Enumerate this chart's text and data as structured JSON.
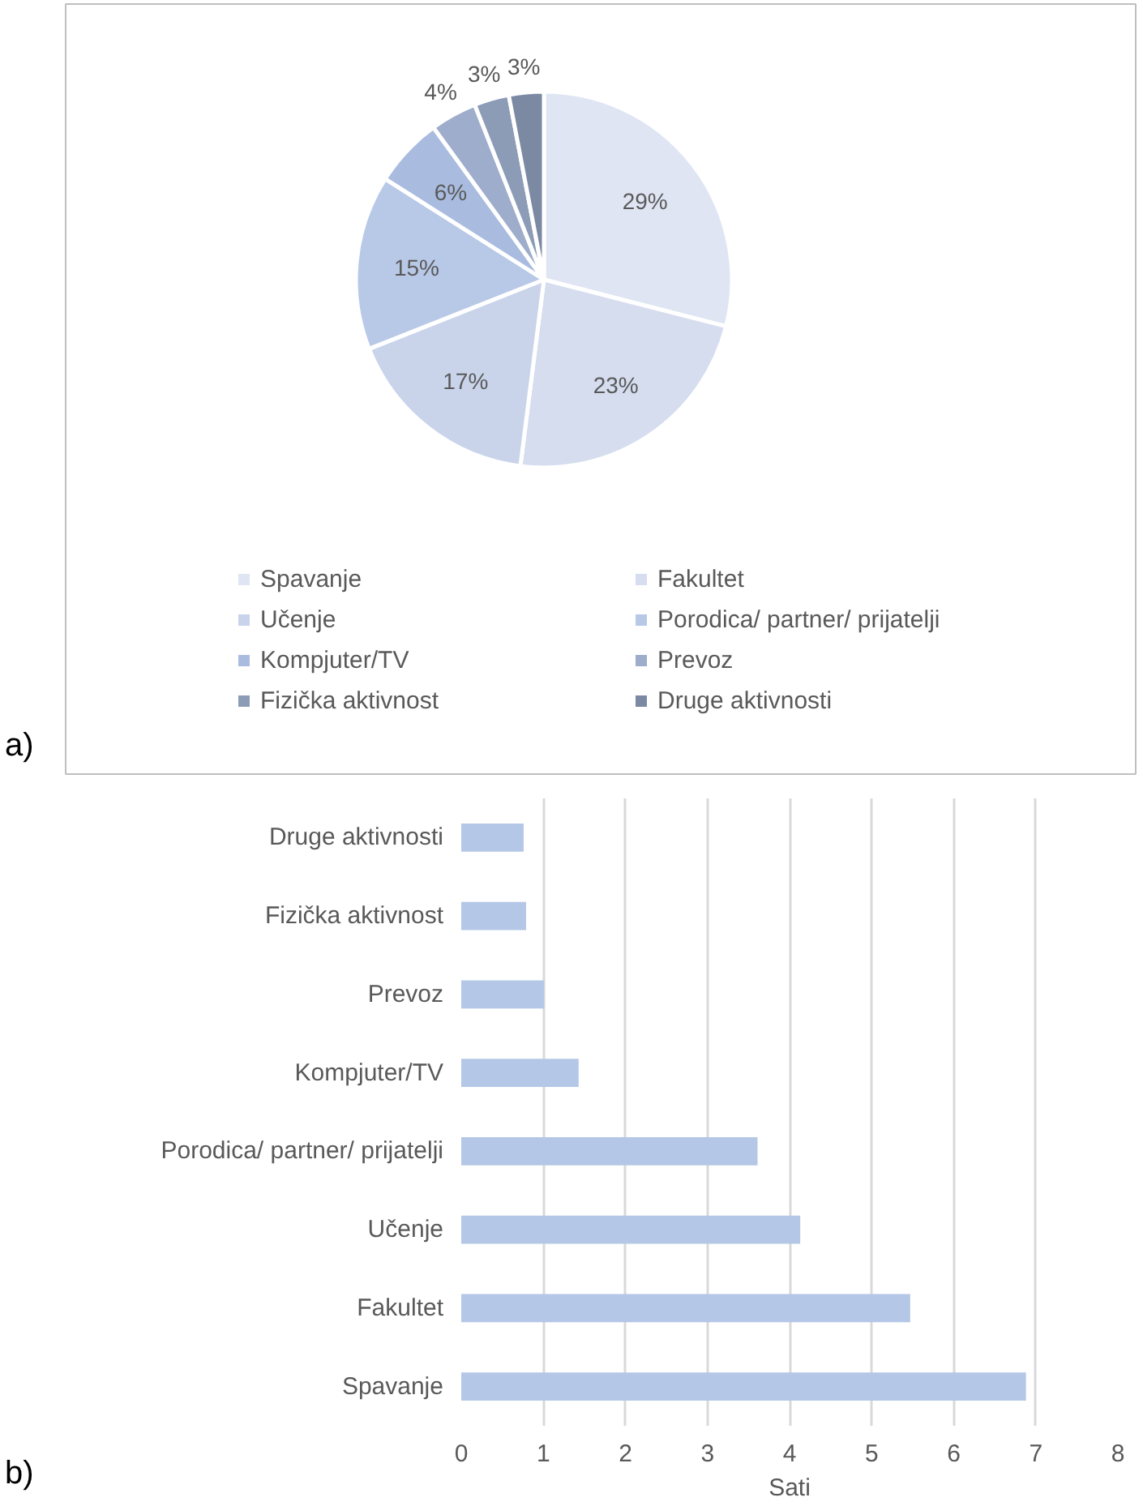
{
  "chart_data": [
    {
      "type": "pie",
      "categories": [
        "Spavanje",
        "Fakultet",
        "Učenje",
        "Porodica/ partner/ prijatelji",
        "Kompjuter/TV",
        "Prevoz",
        "Fizička aktivnost",
        "Druge aktivnosti"
      ],
      "values": [
        29,
        23,
        17,
        15,
        6,
        4,
        3,
        3
      ],
      "colors": [
        "#dfe5f3",
        "#d5ddef",
        "#c9d4eb",
        "#b8c8e7",
        "#a9bcdf",
        "#9eadcb",
        "#8c9cb7",
        "#7b89a2"
      ],
      "value_labels": [
        "29%",
        "23%",
        "17%",
        "15%",
        "6%",
        "4%",
        "3%",
        "3%"
      ],
      "legend": "bottom",
      "annotations": [
        "a)"
      ]
    },
    {
      "type": "bar",
      "orientation": "horizontal",
      "categories": [
        "Druge aktivnosti",
        "Fizička aktivnost",
        "Prevoz",
        "Kompjuter/TV",
        "Porodica/ partner/ prijatelji",
        "Učenje",
        "Fakultet",
        "Spavanje"
      ],
      "values": [
        0.76,
        0.79,
        1.01,
        1.43,
        3.61,
        4.13,
        5.47,
        6.88
      ],
      "color": "#b4c7e7",
      "xlim": [
        0,
        8
      ],
      "xticks": [
        0,
        1,
        2,
        3,
        4,
        5,
        6,
        7,
        8
      ],
      "xlabel": "Sati",
      "grid": "x",
      "annotations": [
        "b)"
      ]
    }
  ]
}
